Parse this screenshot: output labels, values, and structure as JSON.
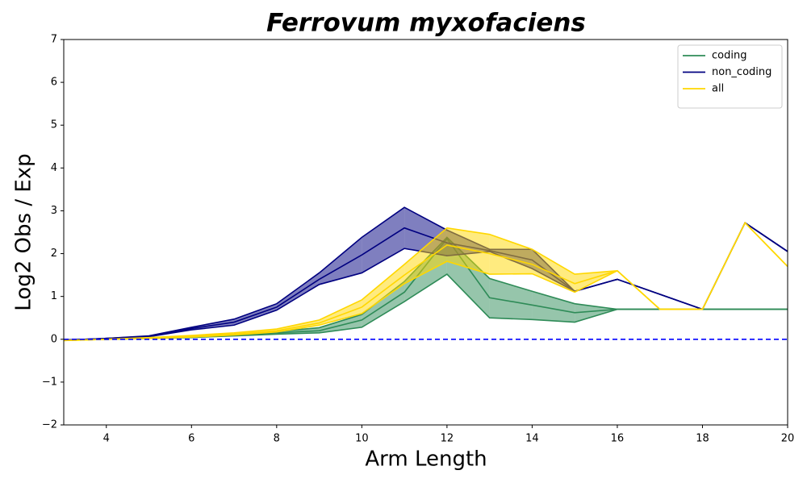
{
  "chart_data": {
    "type": "line",
    "title": "Ferrovum myxofaciens",
    "xlabel": "Arm Length",
    "ylabel": "Log2 Obs / Exp",
    "x": [
      3,
      4,
      5,
      6,
      7,
      8,
      9,
      10,
      11,
      12,
      13,
      14,
      15,
      16,
      17,
      18,
      19,
      20
    ],
    "xlim": [
      3,
      20
    ],
    "xticks": [
      4,
      6,
      8,
      10,
      12,
      14,
      16,
      18,
      20
    ],
    "ylim": [
      -2,
      7
    ],
    "yticks": [
      {
        "value": -2,
        "label": "−2"
      },
      {
        "value": -1,
        "label": "−1"
      },
      0,
      1,
      2,
      3,
      4,
      5,
      6,
      7
    ],
    "reference_line": {
      "value": 0,
      "color": "#0000ff"
    },
    "legend": "upper right",
    "series": [
      {
        "name": "coding",
        "color": "#2e8b57",
        "values": [
          -0.02,
          0.0,
          0.02,
          0.05,
          0.1,
          0.15,
          0.2,
          0.45,
          1.1,
          2.35,
          0.97,
          0.8,
          0.62,
          0.7,
          0.7,
          0.7,
          0.7,
          0.7
        ],
        "upper": [
          -0.02,
          0.0,
          0.02,
          0.06,
          0.11,
          0.18,
          0.27,
          0.58,
          1.35,
          2.38,
          1.42,
          1.12,
          0.83,
          0.7,
          0.7,
          0.7,
          0.7,
          0.7
        ],
        "lower": [
          -0.02,
          0.0,
          0.02,
          0.04,
          0.08,
          0.12,
          0.15,
          0.28,
          0.88,
          1.52,
          0.5,
          0.46,
          0.4,
          0.7,
          0.7,
          0.7,
          0.7,
          0.7
        ]
      },
      {
        "name": "non_coding",
        "color": "#000080",
        "values": [
          -0.02,
          0.02,
          0.07,
          0.25,
          0.4,
          0.75,
          1.4,
          1.97,
          2.6,
          2.25,
          2.07,
          1.85,
          1.12,
          1.4,
          1.05,
          0.7,
          2.72,
          2.05
        ],
        "upper": [
          -0.02,
          0.02,
          0.08,
          0.28,
          0.47,
          0.83,
          1.55,
          2.38,
          3.08,
          2.55,
          2.1,
          2.1,
          1.12,
          1.4,
          1.05,
          0.7,
          2.72,
          2.05
        ],
        "lower": [
          -0.02,
          0.02,
          0.06,
          0.22,
          0.33,
          0.68,
          1.28,
          1.55,
          2.12,
          1.95,
          2.05,
          1.65,
          1.12,
          1.4,
          1.05,
          0.7,
          2.72,
          2.05
        ]
      },
      {
        "name": "all",
        "color": "#ffd700",
        "values": [
          -0.03,
          0.0,
          0.03,
          0.07,
          0.12,
          0.2,
          0.38,
          0.75,
          1.5,
          2.2,
          2.0,
          1.75,
          1.3,
          1.6,
          0.7,
          0.7,
          2.72,
          1.7
        ],
        "upper": [
          -0.03,
          0.0,
          0.04,
          0.09,
          0.15,
          0.24,
          0.45,
          0.92,
          1.75,
          2.6,
          2.45,
          2.1,
          1.52,
          1.6,
          0.7,
          0.7,
          2.72,
          1.7
        ],
        "lower": [
          -0.03,
          0.0,
          0.02,
          0.05,
          0.1,
          0.17,
          0.33,
          0.6,
          1.3,
          1.82,
          1.52,
          1.53,
          1.1,
          1.6,
          0.7,
          0.7,
          2.72,
          1.7
        ]
      }
    ]
  }
}
